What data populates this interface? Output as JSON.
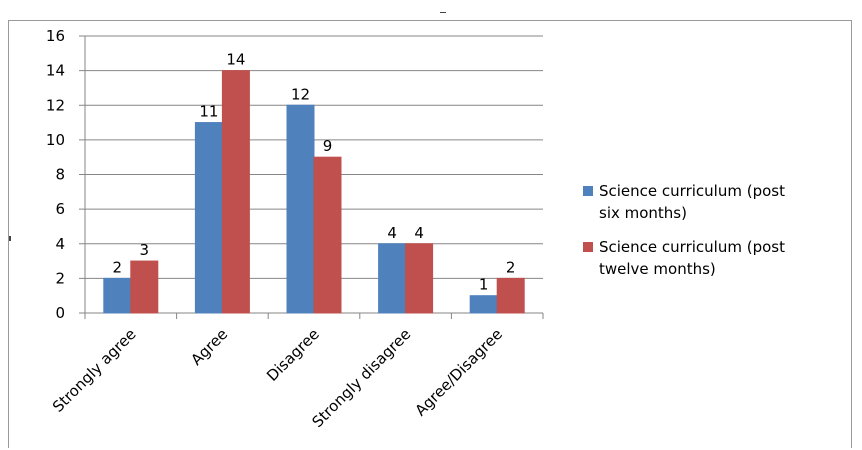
{
  "chart_data": {
    "type": "bar",
    "categories": [
      "Strongly agree",
      "Agree",
      "Disagree",
      "Strongly disagree",
      "Agree/Disagree"
    ],
    "series": [
      {
        "name": "Science curriculum  (post six months)",
        "legend_lines": [
          "Science curriculum  (post",
          "six months)"
        ],
        "color": "#4f81bd",
        "values": [
          2,
          11,
          12,
          4,
          1
        ]
      },
      {
        "name": "Science curriculum (post twelve months)",
        "legend_lines": [
          "Science curriculum (post",
          "twelve months)"
        ],
        "color": "#c0504d",
        "values": [
          3,
          14,
          9,
          4,
          2
        ]
      }
    ],
    "title": "",
    "xlabel": "",
    "ylabel": "",
    "ylim": [
      0,
      16
    ],
    "yticks": [
      0,
      2,
      4,
      6,
      8,
      10,
      12,
      14,
      16
    ],
    "grid": true,
    "legend": "right"
  }
}
